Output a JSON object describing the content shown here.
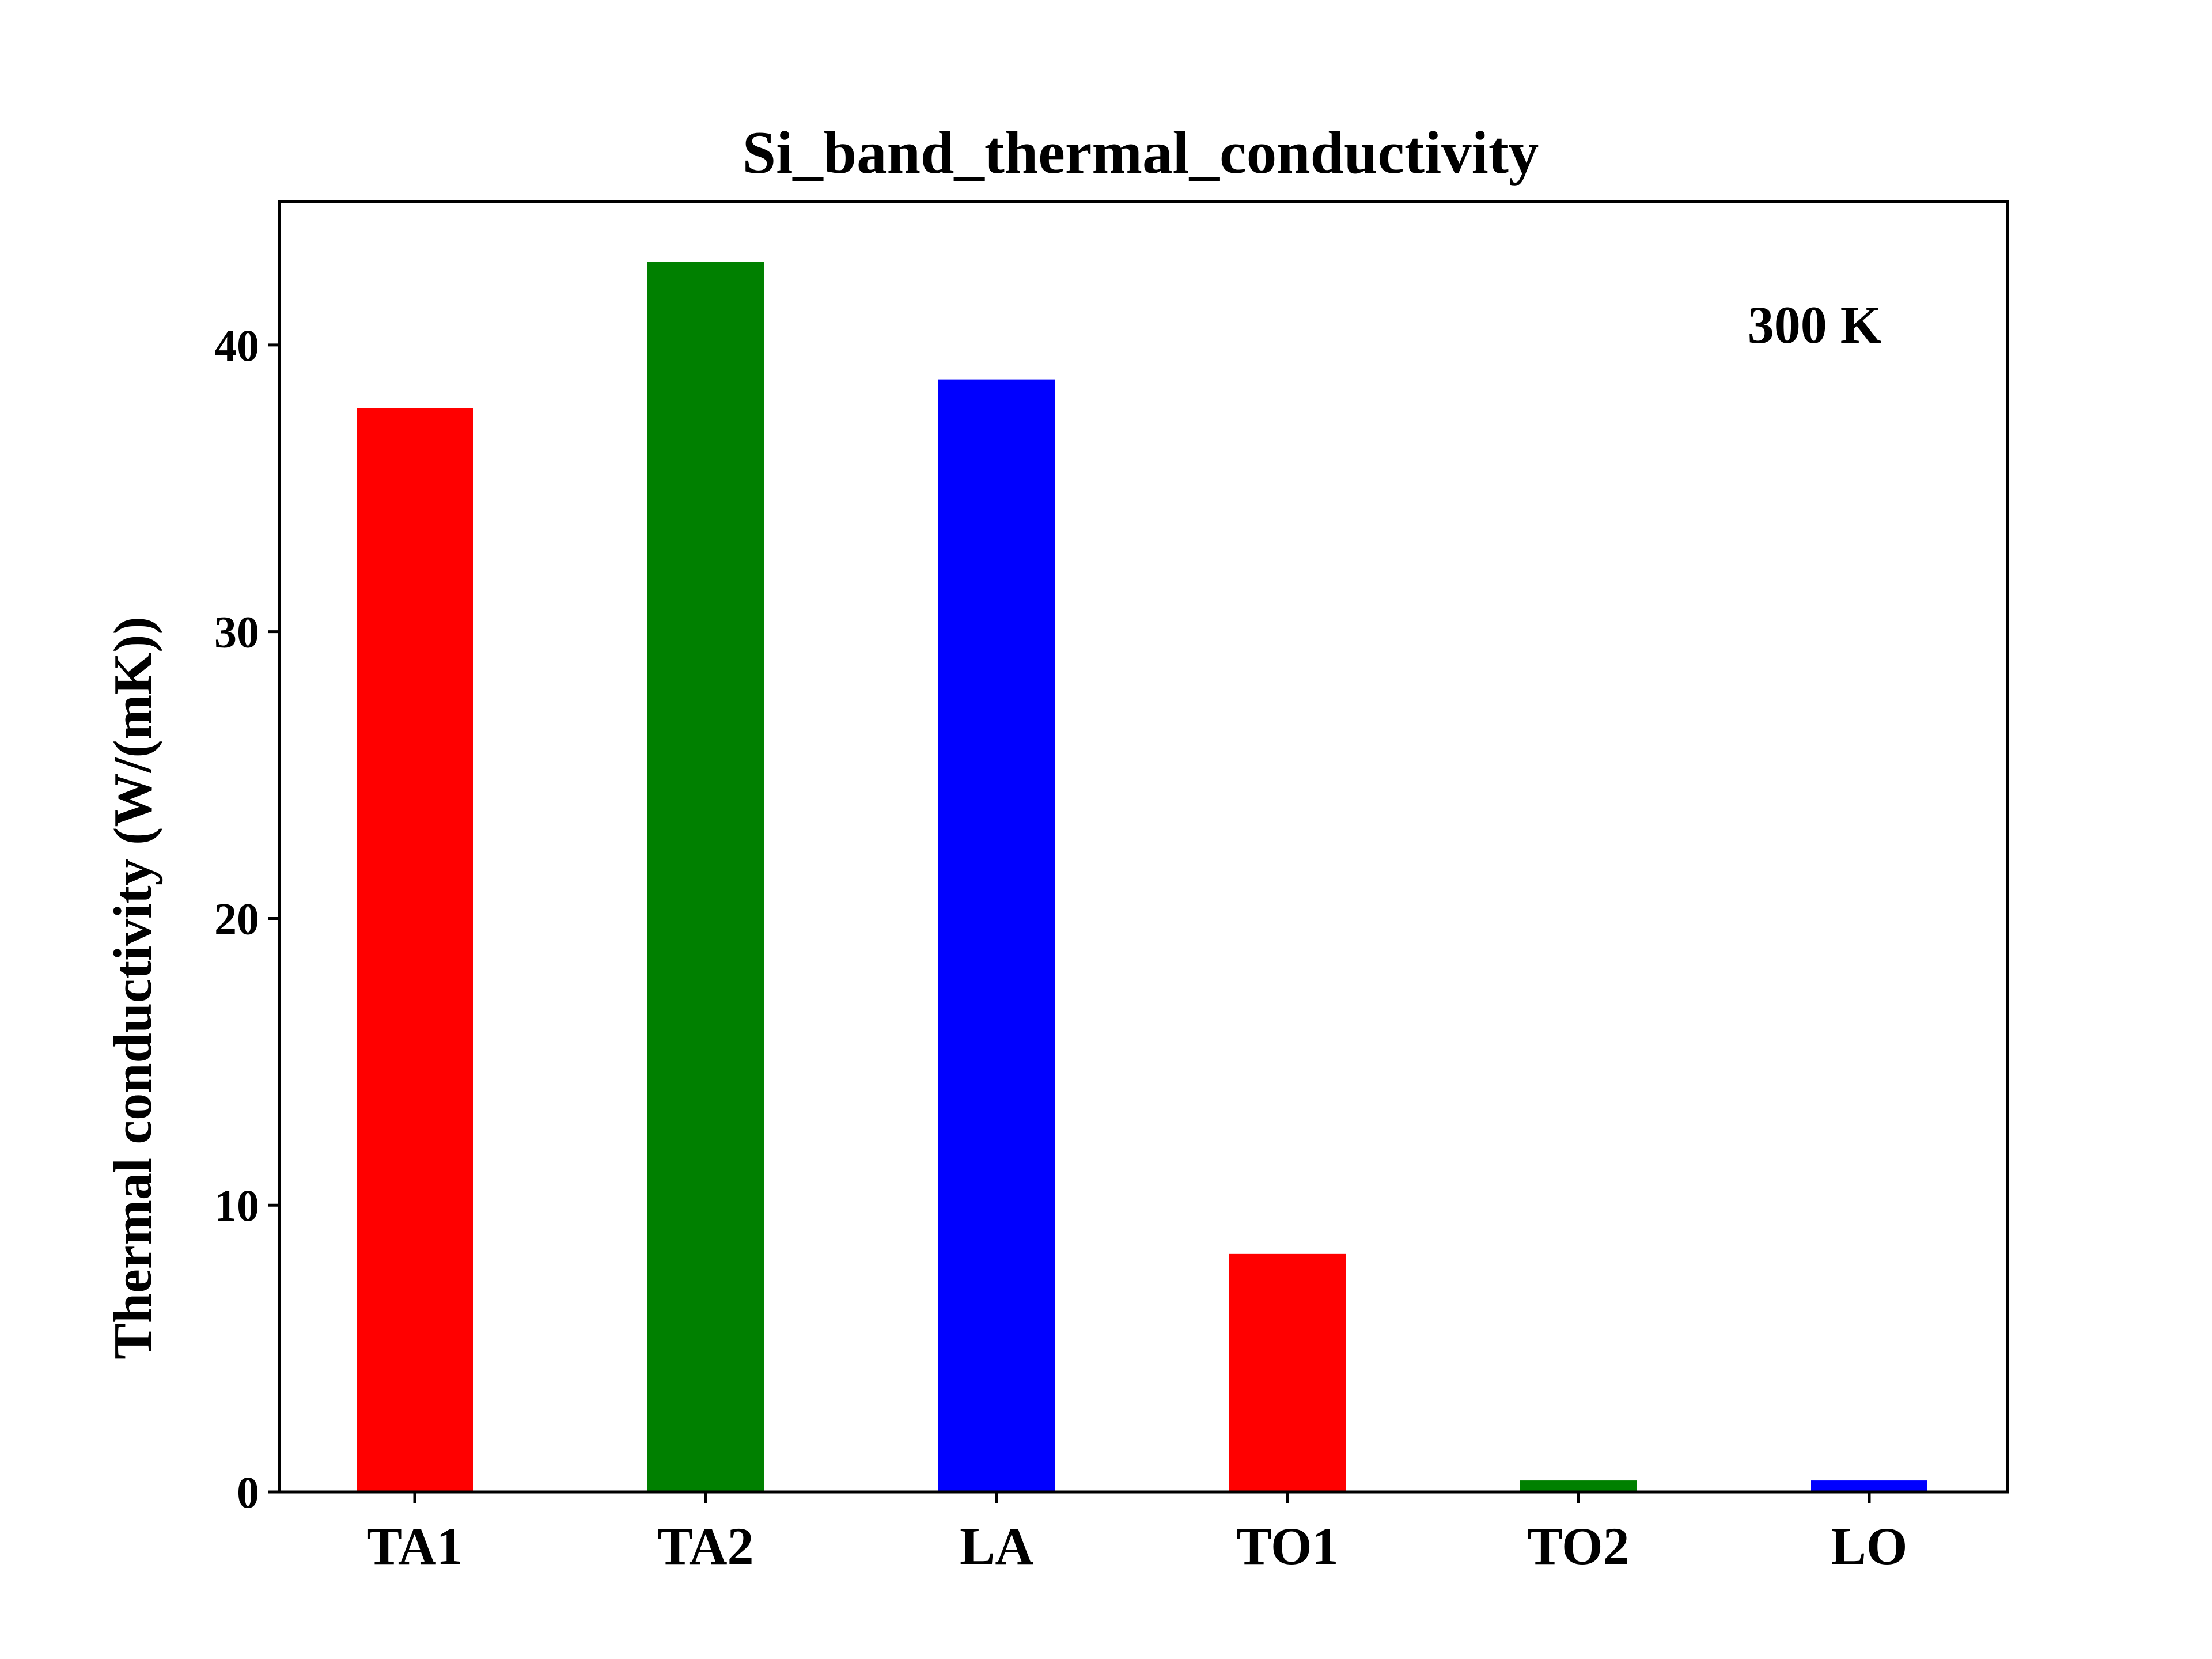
{
  "chart_data": {
    "type": "bar",
    "title": "Si_band_thermal_conductivity",
    "xlabel": "",
    "ylabel": "Thermal conductivity (W/(mK))",
    "categories": [
      "TA1",
      "TA2",
      "LA",
      "TO1",
      "TO2",
      "LO"
    ],
    "values": [
      37.8,
      42.9,
      38.8,
      8.3,
      0.4,
      0.4
    ],
    "bar_colors": [
      "#ff0000",
      "#008000",
      "#0000ff",
      "#ff0000",
      "#008000",
      "#0000ff"
    ],
    "ylim": [
      0,
      45
    ],
    "yticks": [
      0,
      10,
      20,
      30,
      40
    ],
    "ytick_labels": [
      "0",
      "10",
      "20",
      "30",
      "40"
    ],
    "annotation": "300 K",
    "grid": false,
    "legend": "none"
  }
}
